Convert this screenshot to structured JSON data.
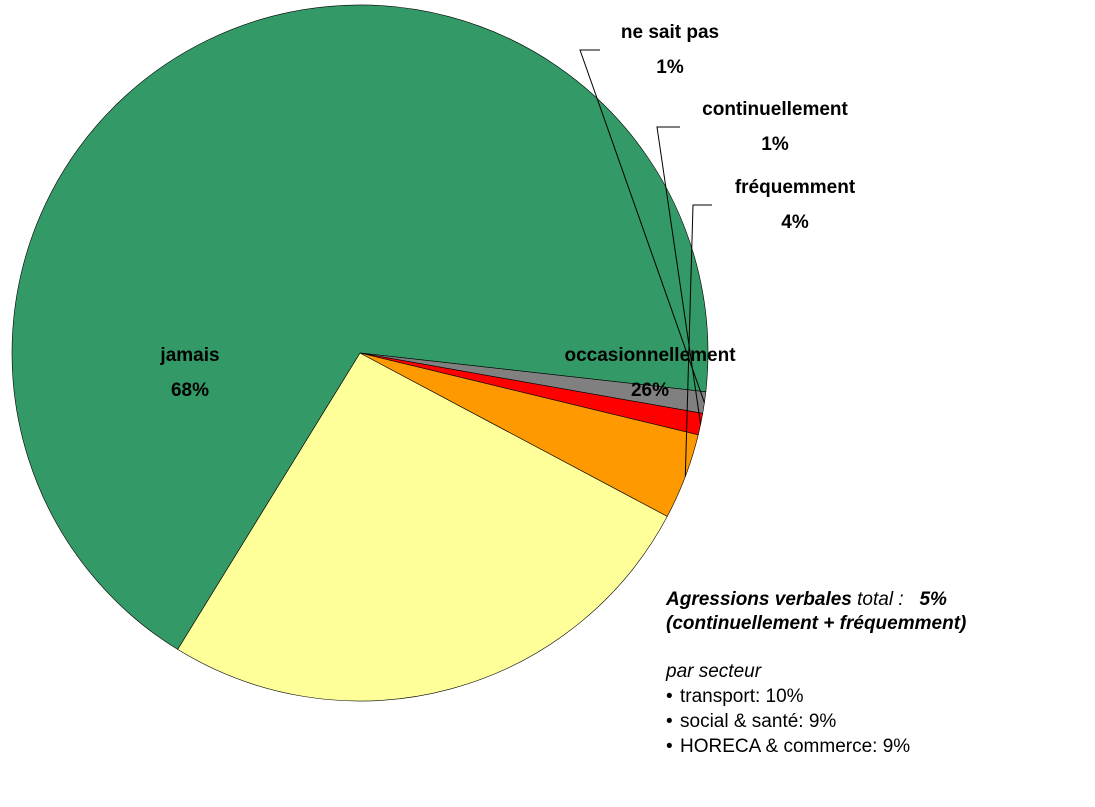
{
  "chart_data": {
    "type": "pie",
    "title": "",
    "slices": [
      {
        "label": "jamais",
        "value": 68,
        "value_label": "68%",
        "color": "#339966"
      },
      {
        "label": "occasionnellement",
        "value": 26,
        "value_label": "26%",
        "color": "#ffff99"
      },
      {
        "label": "fréquemment",
        "value": 4,
        "value_label": "4%",
        "color": "#ff9900"
      },
      {
        "label": "continuellement",
        "value": 1,
        "value_label": "1%",
        "color": "#ff0000"
      },
      {
        "label": "ne sait pas",
        "value": 1,
        "value_label": "1%",
        "color": "#808080"
      }
    ],
    "legend": "none"
  },
  "note": {
    "headline_bold": "Agressions verbales",
    "headline_plain": " total :",
    "headline_value": "5%",
    "headline_sub": "(continuellement + fréquemment)",
    "sector_title": "par secteur",
    "sectors": [
      "transport: 10%",
      "social & santé: 9%",
      "HORECA & commerce: 9%"
    ]
  }
}
